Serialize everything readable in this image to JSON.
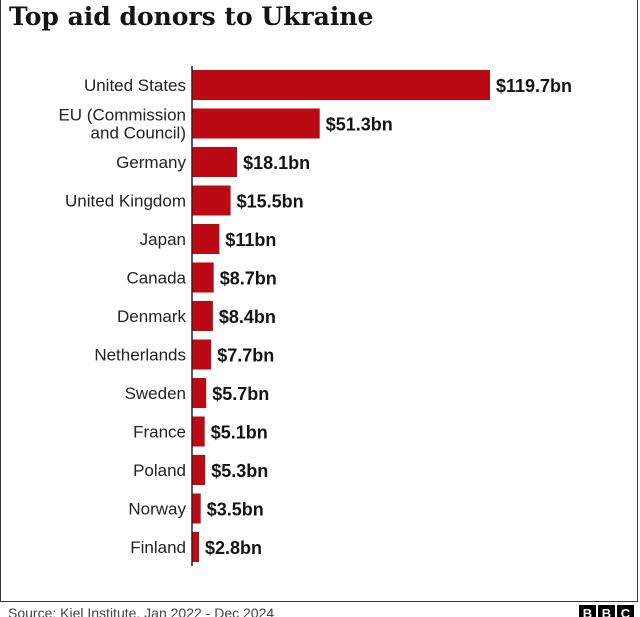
{
  "title": "Top aid donors to Ukraine",
  "source": "Source: Kiel Institute, Jan 2022 - Dec 2024",
  "logo_letters": [
    "B",
    "B",
    "C"
  ],
  "colors": {
    "bar": "#bb0a13",
    "axis": "#222222"
  },
  "chart_data": {
    "type": "bar",
    "orientation": "horizontal",
    "title": "Top aid donors to Ukraine",
    "xlabel": "",
    "ylabel": "",
    "unit": "$bn",
    "grid": false,
    "xlim": [
      0,
      119.7
    ],
    "categories": [
      "United States",
      "EU (Commission\nand Council)",
      "Germany",
      "United Kingdom",
      "Japan",
      "Canada",
      "Denmark",
      "Netherlands",
      "Sweden",
      "France",
      "Poland",
      "Norway",
      "Finland"
    ],
    "values": [
      119.7,
      51.3,
      18.1,
      15.5,
      11,
      8.7,
      8.4,
      7.7,
      5.7,
      5.1,
      5.3,
      3.5,
      2.8
    ],
    "value_labels": [
      "$119.7bn",
      "$51.3bn",
      "$18.1bn",
      "$15.5bn",
      "$11bn",
      "$8.7bn",
      "$8.4bn",
      "$7.7bn",
      "$5.7bn",
      "$5.1bn",
      "$5.3bn",
      "$3.5bn",
      "$2.8bn"
    ]
  }
}
